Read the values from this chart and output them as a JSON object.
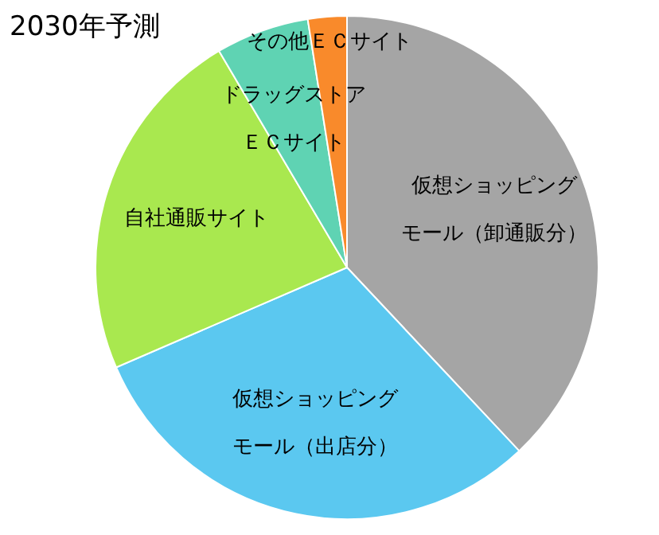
{
  "chart_data": {
    "type": "pie",
    "title": "2030年予測",
    "categories": [
      "仮想ショッピングモール（卸通販分）",
      "仮想ショッピングモール（出店分）",
      "自社通販サイト",
      "ドラッグストアＥＣサイト",
      "その他ＥＣサイト"
    ],
    "values": [
      38,
      30.5,
      23,
      6,
      2.5
    ],
    "colors": [
      "#a5a5a5",
      "#5bc8f0",
      "#a9e84f",
      "#5fd3b3",
      "#f98a2b"
    ],
    "legend": false
  }
}
